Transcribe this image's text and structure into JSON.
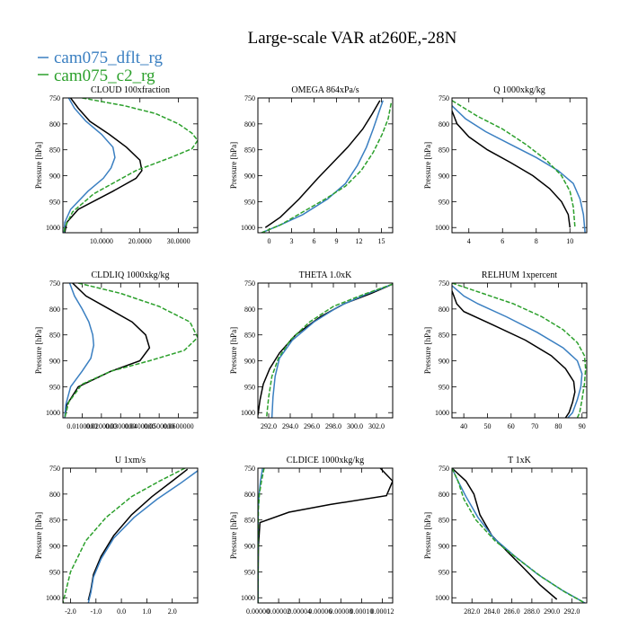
{
  "title": "Large-scale VAR at260E,-28N",
  "legend": [
    {
      "name": "cam075_dflt_rg",
      "color": "#3a7fc1"
    },
    {
      "name": "cam075_c2_rg",
      "color": "#2ca02c"
    }
  ],
  "ylabel": "Pressure [hPa]",
  "chart_data": [
    {
      "type": "line",
      "title": "CLOUD  100xfraction",
      "xlim": [
        0,
        35
      ],
      "ylim": [
        750,
        1010
      ],
      "y_inverted": true,
      "xticks": [
        10,
        20,
        30
      ],
      "xtick_labels": [
        "10.0000",
        "20.0000",
        "30.0000"
      ],
      "yticks": [
        750,
        800,
        850,
        900,
        950,
        1000
      ],
      "ytick_labels": [
        "750",
        "800",
        "850",
        "900",
        "950",
        "1000"
      ],
      "series": [
        {
          "color": "#000000",
          "dash": "",
          "x": [
            2,
            4,
            7,
            12,
            16.5,
            20,
            20.5,
            19,
            13,
            4,
            1,
            0.5
          ],
          "y": [
            750,
            770,
            795,
            820,
            845,
            870,
            890,
            905,
            930,
            965,
            990,
            1010
          ]
        },
        {
          "color": "#3a7fc1",
          "dash": "",
          "x": [
            1.5,
            3,
            6,
            10,
            13,
            13.5,
            12.5,
            10.5,
            6.5,
            2,
            0.5,
            0.3
          ],
          "y": [
            750,
            770,
            795,
            820,
            845,
            865,
            885,
            905,
            930,
            965,
            990,
            1010
          ]
        },
        {
          "color": "#2ca02c",
          "dash": "5,2",
          "x": [
            5,
            16,
            24,
            30,
            33.5,
            35,
            33.5,
            28,
            19,
            8,
            2.5,
            0.5,
            0.3
          ],
          "y": [
            750,
            765,
            780,
            800,
            818,
            832,
            848,
            865,
            890,
            935,
            970,
            1000,
            1010
          ]
        }
      ]
    },
    {
      "type": "line",
      "title": "OMEGA  864xPa/s",
      "xlim": [
        -1.5,
        16.5
      ],
      "ylim": [
        750,
        1010
      ],
      "y_inverted": true,
      "xticks": [
        0,
        3,
        6,
        9,
        12,
        15
      ],
      "xtick_labels": [
        "0",
        "3",
        "6",
        "9",
        "12",
        "15"
      ],
      "yticks": [
        750,
        800,
        850,
        900,
        950,
        1000
      ],
      "ytick_labels": [
        "750",
        "800",
        "850",
        "900",
        "950",
        "1000"
      ],
      "series": [
        {
          "color": "#000000",
          "dash": "",
          "x": [
            14.8,
            13.8,
            12.5,
            10.5,
            8.5,
            6.5,
            4,
            1.5,
            -0.5
          ],
          "y": [
            755,
            780,
            810,
            845,
            875,
            905,
            945,
            980,
            1000
          ]
        },
        {
          "color": "#3a7fc1",
          "dash": "",
          "x": [
            15.2,
            14.6,
            13.9,
            13,
            11.8,
            10.2,
            7.8,
            4.5,
            1.5,
            -1
          ],
          "y": [
            755,
            780,
            810,
            845,
            880,
            915,
            945,
            975,
            995,
            1010
          ]
        },
        {
          "color": "#2ca02c",
          "dash": "5,2",
          "x": [
            16.3,
            15.9,
            15.1,
            13.9,
            12.3,
            10.2,
            7.5,
            4.5,
            1.5,
            -1
          ],
          "y": [
            760,
            790,
            820,
            855,
            890,
            920,
            945,
            970,
            995,
            1010
          ]
        }
      ]
    },
    {
      "type": "line",
      "title": "Q  1000xkg/kg",
      "xlim": [
        3,
        11
      ],
      "ylim": [
        750,
        1010
      ],
      "y_inverted": true,
      "xticks": [
        4,
        6,
        8,
        10
      ],
      "xtick_labels": [
        "4",
        "6",
        "8",
        "10"
      ],
      "yticks": [
        750,
        800,
        850,
        900,
        950,
        1000
      ],
      "ytick_labels": [
        "750",
        "800",
        "850",
        "900",
        "950",
        "1000"
      ],
      "series": [
        {
          "color": "#000000",
          "dash": "",
          "x": [
            3,
            3.3,
            4,
            5.1,
            6.5,
            7.8,
            8.8,
            9.5,
            9.9,
            10
          ],
          "y": [
            775,
            800,
            825,
            850,
            875,
            900,
            925,
            950,
            975,
            1000
          ]
        },
        {
          "color": "#3a7fc1",
          "dash": "",
          "x": [
            3,
            3.8,
            5,
            6.5,
            8,
            9.3,
            10.2,
            10.6,
            10.8,
            10.9
          ],
          "y": [
            765,
            790,
            815,
            840,
            865,
            890,
            915,
            945,
            975,
            1010
          ]
        },
        {
          "color": "#2ca02c",
          "dash": "5,2",
          "x": [
            3,
            4.5,
            6,
            7.4,
            8.6,
            9.5,
            10,
            10.2,
            10.3
          ],
          "y": [
            755,
            785,
            810,
            840,
            870,
            900,
            930,
            960,
            1000
          ]
        }
      ]
    },
    {
      "type": "line",
      "title": "CLDLIQ  1000xkg/kg",
      "xlim": [
        0,
        0.07
      ],
      "ylim": [
        750,
        1010
      ],
      "y_inverted": true,
      "xticks": [
        0.01,
        0.02,
        0.03,
        0.04,
        0.05,
        0.06
      ],
      "xtick_labels": [
        "0.0100000",
        "0.0200000",
        "0.0300000",
        "0.0400000",
        "0.0500000",
        "0.0600000"
      ],
      "yticks": [
        750,
        800,
        850,
        900,
        950,
        1000
      ],
      "ytick_labels": [
        "750",
        "800",
        "850",
        "900",
        "950",
        "1000"
      ],
      "series": [
        {
          "color": "#000000",
          "dash": "",
          "x": [
            0.005,
            0.012,
            0.024,
            0.036,
            0.043,
            0.045,
            0.04,
            0.025,
            0.008,
            0.002,
            0.001
          ],
          "y": [
            750,
            775,
            800,
            825,
            850,
            875,
            900,
            920,
            950,
            985,
            1010
          ]
        },
        {
          "color": "#3a7fc1",
          "dash": "",
          "x": [
            0.0035,
            0.006,
            0.01,
            0.0135,
            0.0155,
            0.016,
            0.0145,
            0.01,
            0.004,
            0.0015,
            0.001
          ],
          "y": [
            750,
            775,
            800,
            825,
            850,
            870,
            895,
            920,
            950,
            985,
            1010
          ]
        },
        {
          "color": "#2ca02c",
          "dash": "5,2",
          "x": [
            0.008,
            0.03,
            0.05,
            0.066,
            0.07,
            0.063,
            0.045,
            0.025,
            0.01,
            0.003,
            0.001
          ],
          "y": [
            750,
            770,
            795,
            825,
            855,
            880,
            900,
            920,
            945,
            980,
            1010
          ]
        }
      ]
    },
    {
      "type": "line",
      "title": "THETA  1.0xK",
      "xlim": [
        291,
        303.5
      ],
      "ylim": [
        750,
        1010
      ],
      "y_inverted": true,
      "xticks": [
        292,
        294,
        296,
        298,
        300,
        302
      ],
      "xtick_labels": [
        "292.0",
        "294.0",
        "296.0",
        "298.0",
        "300.0",
        "302.0"
      ],
      "yticks": [
        750,
        800,
        850,
        900,
        950,
        1000
      ],
      "ytick_labels": [
        "750",
        "800",
        "850",
        "900",
        "950",
        "1000"
      ],
      "series": [
        {
          "color": "#000000",
          "dash": "",
          "x": [
            303.5,
            301.5,
            299,
            296.8,
            294.5,
            293,
            292.1,
            291.5,
            291.2,
            291
          ],
          "y": [
            752,
            770,
            790,
            815,
            850,
            885,
            915,
            945,
            975,
            1005
          ]
        },
        {
          "color": "#3a7fc1",
          "dash": "",
          "x": [
            303.5,
            301,
            298.5,
            296.2,
            294.2,
            293,
            292.6,
            292.4,
            292.3
          ],
          "y": [
            752,
            772,
            795,
            825,
            860,
            895,
            930,
            970,
            1010
          ]
        },
        {
          "color": "#2ca02c",
          "dash": "5,2",
          "x": [
            303.5,
            300.8,
            298,
            295.8,
            294,
            292.9,
            292.3,
            292,
            291.8
          ],
          "y": [
            752,
            772,
            795,
            825,
            860,
            895,
            930,
            970,
            1010
          ]
        }
      ]
    },
    {
      "type": "line",
      "title": "RELHUM  1xpercent",
      "xlim": [
        35,
        92
      ],
      "ylim": [
        750,
        1010
      ],
      "y_inverted": true,
      "xticks": [
        40,
        50,
        60,
        70,
        80,
        90
      ],
      "xtick_labels": [
        "40",
        "50",
        "60",
        "70",
        "80",
        "90"
      ],
      "yticks": [
        750,
        800,
        850,
        900,
        950,
        1000
      ],
      "ytick_labels": [
        "750",
        "800",
        "850",
        "900",
        "950",
        "1000"
      ],
      "series": [
        {
          "color": "#000000",
          "dash": "",
          "x": [
            35,
            37,
            40,
            52,
            66,
            77,
            83,
            86.5,
            87,
            86,
            84.5,
            83
          ],
          "y": [
            765,
            790,
            805,
            830,
            860,
            890,
            915,
            940,
            960,
            980,
            1000,
            1010
          ]
        },
        {
          "color": "#3a7fc1",
          "dash": "",
          "x": [
            35,
            40,
            46,
            58,
            71,
            82,
            88,
            90,
            89.5,
            88,
            86,
            84
          ],
          "y": [
            755,
            775,
            790,
            815,
            845,
            875,
            900,
            925,
            950,
            975,
            1000,
            1010
          ]
        },
        {
          "color": "#2ca02c",
          "dash": "5,2",
          "x": [
            35,
            48,
            61,
            73,
            82,
            88,
            91,
            91.5,
            91,
            90,
            89,
            88
          ],
          "y": [
            750,
            770,
            790,
            815,
            840,
            865,
            890,
            915,
            945,
            975,
            1000,
            1010
          ]
        }
      ]
    },
    {
      "type": "line",
      "title": "U  1xm/s",
      "xlim": [
        -2.3,
        3
      ],
      "ylim": [
        750,
        1010
      ],
      "y_inverted": true,
      "xticks": [
        -2,
        -1,
        0,
        1,
        2
      ],
      "xtick_labels": [
        "-2.0",
        "-1.0",
        "0.0",
        "1.0",
        "2.0"
      ],
      "yticks": [
        750,
        800,
        850,
        900,
        950,
        1000
      ],
      "ytick_labels": [
        "750",
        "800",
        "850",
        "900",
        "950",
        "1000"
      ],
      "series": [
        {
          "color": "#000000",
          "dash": "",
          "x": [
            2.6,
            2.0,
            1.2,
            0.4,
            -0.3,
            -0.8,
            -1.1,
            -1.2,
            -1.3
          ],
          "y": [
            752,
            775,
            805,
            840,
            880,
            920,
            955,
            985,
            1005
          ]
        },
        {
          "color": "#3a7fc1",
          "dash": "",
          "x": [
            3,
            2.3,
            1.4,
            0.5,
            -0.3,
            -0.8,
            -1.1,
            -1.2,
            -1.3
          ],
          "y": [
            755,
            780,
            810,
            845,
            885,
            925,
            960,
            990,
            1010
          ]
        },
        {
          "color": "#2ca02c",
          "dash": "5,2",
          "x": [
            2.5,
            1.5,
            0.4,
            -0.6,
            -1.4,
            -2.0,
            -2.3
          ],
          "y": [
            750,
            775,
            805,
            845,
            890,
            950,
            1010
          ]
        }
      ]
    },
    {
      "type": "line",
      "title": "CLDICE  1000xkg/kg",
      "xlim": [
        0,
        0.00013
      ],
      "ylim": [
        750,
        1010
      ],
      "y_inverted": true,
      "xticks": [
        0,
        2e-05,
        4e-05,
        6e-05,
        8e-05,
        0.0001,
        0.00012
      ],
      "xtick_labels": [
        "0.00000",
        "0.00002",
        "0.00004",
        "0.00006",
        "0.00008",
        "0.00010",
        "0.00012"
      ],
      "yticks": [
        750,
        800,
        850,
        900,
        950,
        1000
      ],
      "ytick_labels": [
        "750",
        "800",
        "850",
        "900",
        "950",
        "1000"
      ],
      "series": [
        {
          "color": "#000000",
          "dash": "",
          "x": [
            0.000118,
            0.00013,
            0.000124,
            7e-05,
            3e-05,
            2e-06,
            5e-07,
            0
          ],
          "y": [
            750,
            775,
            803,
            820,
            835,
            855,
            900,
            1010
          ]
        },
        {
          "color": "#3a7fc1",
          "dash": "",
          "x": [
            4.5e-06,
            2.5e-06,
            1.2e-06,
            3e-07,
            0
          ],
          "y": [
            750,
            775,
            800,
            830,
            1010
          ]
        },
        {
          "color": "#2ca02c",
          "dash": "5,2",
          "x": [
            6e-06,
            3.5e-06,
            1.5e-06,
            4e-07,
            0
          ],
          "y": [
            750,
            775,
            800,
            830,
            1010
          ]
        }
      ]
    },
    {
      "type": "line",
      "title": "T  1xK",
      "xlim": [
        280,
        293.5
      ],
      "ylim": [
        750,
        1010
      ],
      "y_inverted": true,
      "xticks": [
        282,
        284,
        286,
        288,
        290,
        292
      ],
      "xtick_labels": [
        "282.0",
        "284.0",
        "286.0",
        "288.0",
        "290.0",
        "292.0"
      ],
      "yticks": [
        750,
        800,
        850,
        900,
        950,
        1000
      ],
      "ytick_labels": [
        "750",
        "800",
        "850",
        "900",
        "950",
        "1000"
      ],
      "series": [
        {
          "color": "#000000",
          "dash": "",
          "x": [
            280,
            281.4,
            282.2,
            282.8,
            284,
            285.5,
            287.3,
            288.8,
            290.5
          ],
          "y": [
            750,
            775,
            800,
            840,
            880,
            910,
            945,
            975,
            1003
          ]
        },
        {
          "color": "#3a7fc1",
          "dash": "",
          "x": [
            280,
            280.6,
            281.4,
            282.6,
            284.2,
            286.3,
            288.6,
            291,
            293.5
          ],
          "y": [
            750,
            775,
            805,
            845,
            885,
            920,
            955,
            985,
            1012
          ]
        },
        {
          "color": "#2ca02c",
          "dash": "5,2",
          "x": [
            280,
            280.6,
            281.2,
            282.4,
            284.3,
            286.6,
            289,
            291.4,
            293.5
          ],
          "y": [
            750,
            775,
            810,
            850,
            890,
            925,
            960,
            990,
            1012
          ]
        }
      ]
    }
  ]
}
